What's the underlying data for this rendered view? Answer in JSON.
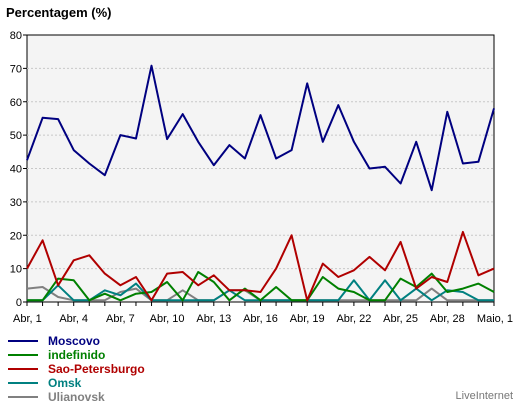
{
  "chart_data": {
    "type": "line",
    "title": "Percentagem (%)",
    "xlabel": "",
    "ylabel": "",
    "ylim": [
      0,
      80
    ],
    "yticks": [
      0,
      10,
      20,
      30,
      40,
      50,
      60,
      70,
      80
    ],
    "x": [
      "Abr, 1",
      "Abr, 2",
      "Abr, 3",
      "Abr, 4",
      "Abr, 5",
      "Abr, 6",
      "Abr, 7",
      "Abr, 8",
      "Abr, 9",
      "Abr, 10",
      "Abr, 11",
      "Abr, 12",
      "Abr, 13",
      "Abr, 14",
      "Abr, 15",
      "Abr, 16",
      "Abr, 17",
      "Abr, 18",
      "Abr, 19",
      "Abr, 20",
      "Abr, 21",
      "Abr, 22",
      "Abr, 23",
      "Abr, 24",
      "Abr, 25",
      "Abr, 26",
      "Abr, 27",
      "Abr, 28",
      "Abr, 29",
      "Abr, 30",
      "Maio, 1"
    ],
    "xtick_labels": [
      "Abr, 1",
      "Abr, 4",
      "Abr, 7",
      "Abr, 10",
      "Abr, 13",
      "Abr, 16",
      "Abr, 19",
      "Abr, 22",
      "Abr, 25",
      "Abr, 28",
      "Maio, 1"
    ],
    "grid": true,
    "legend_position": "bottom-left",
    "series": [
      {
        "name": "Moscovo",
        "color": "#000080",
        "values": [
          42.5,
          55.2,
          54.8,
          45.5,
          41.5,
          38.0,
          50.0,
          49.0,
          70.8,
          48.8,
          56.3,
          48.0,
          41.0,
          47.0,
          43.0,
          56.0,
          43.0,
          45.5,
          65.5,
          48.0,
          59.0,
          48.0,
          40.0,
          40.5,
          35.5,
          48.0,
          33.5,
          57.0,
          41.5,
          42.0,
          58.0
        ]
      },
      {
        "name": "indefinido",
        "color": "#008000",
        "values": [
          0.5,
          0.5,
          7.0,
          6.5,
          0.5,
          2.5,
          0.5,
          2.5,
          3.0,
          6.0,
          0.5,
          9.0,
          6.0,
          0.5,
          4.0,
          0.5,
          4.5,
          0.5,
          0.5,
          7.5,
          4.0,
          3.0,
          0.5,
          0.5,
          7.0,
          4.5,
          8.5,
          3.0,
          4.0,
          5.5,
          3.0
        ]
      },
      {
        "name": "Sao-Petersburgo",
        "color": "#b00000",
        "values": [
          10.0,
          18.5,
          5.0,
          12.5,
          14.0,
          8.5,
          5.0,
          7.5,
          0.5,
          8.5,
          9.0,
          5.0,
          8.0,
          3.5,
          3.5,
          3.0,
          10.0,
          20.0,
          0.5,
          11.5,
          7.5,
          9.5,
          13.5,
          9.5,
          18.0,
          4.0,
          7.5,
          6.0,
          21.0,
          8.0,
          10.0
        ]
      },
      {
        "name": "Omsk",
        "color": "#008080",
        "values": [
          0.5,
          0.5,
          5.0,
          0.5,
          0.5,
          3.5,
          2.0,
          5.5,
          0.5,
          0.5,
          0.5,
          0.5,
          0.5,
          3.5,
          0.5,
          0.5,
          0.5,
          0.5,
          0.5,
          0.5,
          0.5,
          6.5,
          0.5,
          6.5,
          0.5,
          4.0,
          0.5,
          3.5,
          3.0,
          0.5,
          0.5
        ]
      },
      {
        "name": "Ulianovsk",
        "color": "#808080",
        "values": [
          4.0,
          4.5,
          1.5,
          0.5,
          0.5,
          0.5,
          3.0,
          4.0,
          0.5,
          0.5,
          3.5,
          0.5,
          0.5,
          3.5,
          3.5,
          0.5,
          0.5,
          0.5,
          0.5,
          0.5,
          0.5,
          0.5,
          0.5,
          0.5,
          0.5,
          0.5,
          4.0,
          0.5,
          0.5,
          0.5,
          0.5
        ]
      }
    ]
  },
  "credit": "LiveInternet"
}
